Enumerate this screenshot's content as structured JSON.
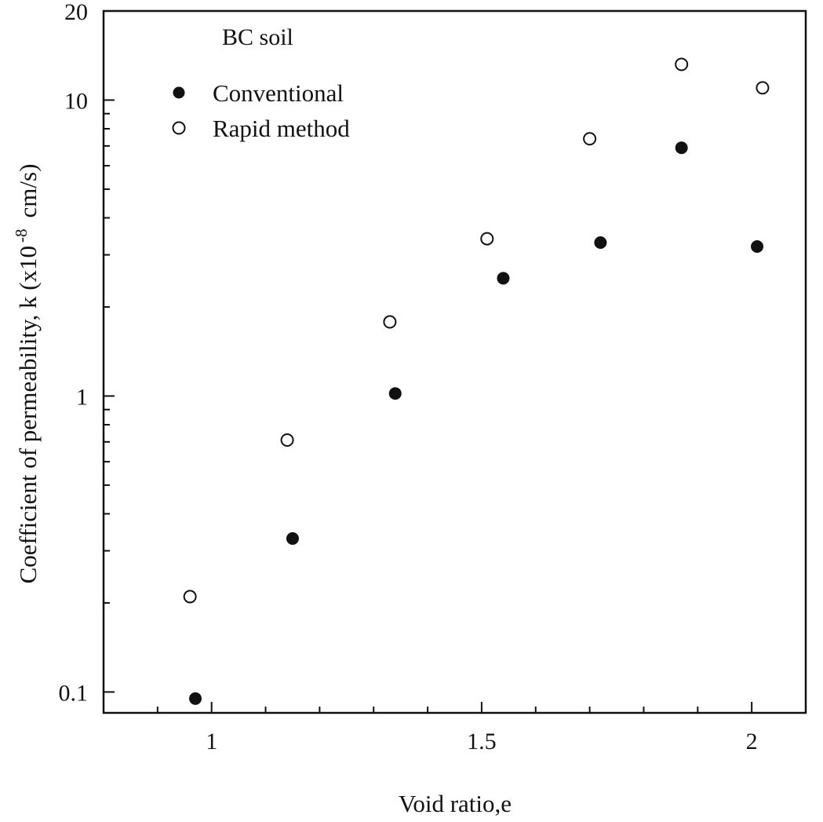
{
  "chart_data": {
    "type": "scatter",
    "title": "BC soil",
    "xlabel": "Void ratio,e",
    "ylabel": "Coefficient of permeability, k (x10",
    "ylabel_exp": "-8",
    "ylabel_unit": "cm/s)",
    "xlim": [
      0.8,
      2.1
    ],
    "ylim": [
      0.085,
      20
    ],
    "yscale": "log",
    "x_ticks": [
      1,
      1.5,
      2
    ],
    "x_tick_labels": [
      "1",
      "1.5",
      "2"
    ],
    "y_ticks": [
      0.1,
      1,
      10,
      20
    ],
    "y_tick_labels": [
      "0.1",
      "1",
      "10",
      "20"
    ],
    "legend_position": "top-left",
    "grid": false,
    "series": [
      {
        "name": "Conventional",
        "marker": "filled-circle",
        "color": "#111111",
        "points": [
          {
            "x": 0.97,
            "y": 0.095
          },
          {
            "x": 1.15,
            "y": 0.33
          },
          {
            "x": 1.34,
            "y": 1.02
          },
          {
            "x": 1.54,
            "y": 2.5
          },
          {
            "x": 1.72,
            "y": 3.3
          },
          {
            "x": 1.87,
            "y": 6.9
          },
          {
            "x": 2.01,
            "y": 3.2
          }
        ]
      },
      {
        "name": "Rapid method",
        "marker": "open-circle",
        "color": "#111111",
        "points": [
          {
            "x": 0.96,
            "y": 0.21
          },
          {
            "x": 1.14,
            "y": 0.71
          },
          {
            "x": 1.33,
            "y": 1.78
          },
          {
            "x": 1.51,
            "y": 3.4
          },
          {
            "x": 1.7,
            "y": 7.4
          },
          {
            "x": 1.87,
            "y": 13.2
          },
          {
            "x": 2.02,
            "y": 11.0
          }
        ]
      }
    ]
  }
}
